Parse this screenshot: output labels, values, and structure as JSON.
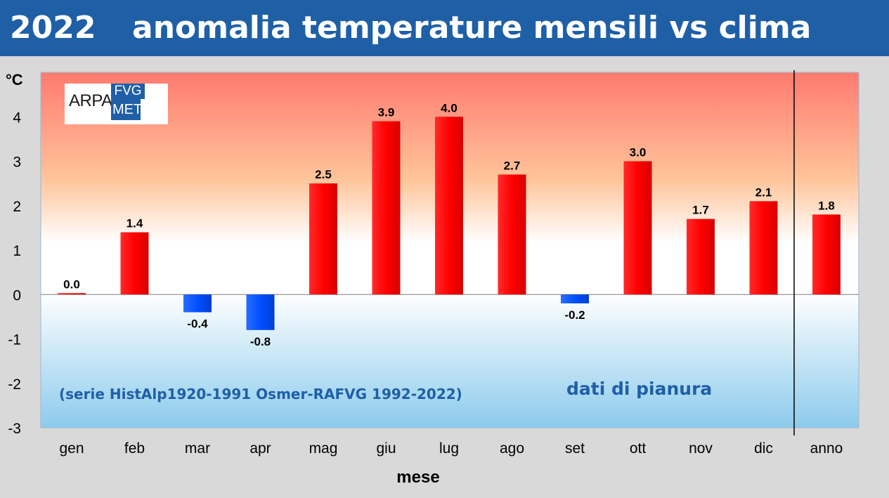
{
  "header": {
    "year": "2022",
    "title": "anomalia temperature mensili vs clima"
  },
  "logo": {
    "name": "arpa-fvg-meteo-logo",
    "text_arpa": "ARPA",
    "text_fvg": "FVG",
    "text_meteo": "METEO"
  },
  "annotations": {
    "source": "(serie HistAlp1920-1991 Osmer-RAFVG 1992-2022)",
    "note": "dati di pianura"
  },
  "chart_data": {
    "type": "bar",
    "title": "anomalia temperature mensili vs clima",
    "xlabel": "mese",
    "ylabel": "°C",
    "ylim": [
      -3,
      5
    ],
    "yticks": [
      4,
      3,
      2,
      1,
      0,
      -1,
      -2,
      -3
    ],
    "grid": false,
    "categories": [
      "gen",
      "feb",
      "mar",
      "apr",
      "mag",
      "giu",
      "lug",
      "ago",
      "set",
      "ott",
      "nov",
      "dic",
      "anno"
    ],
    "values": [
      0.03,
      1.4,
      -0.4,
      -0.8,
      2.5,
      3.9,
      4.0,
      2.7,
      -0.2,
      3.0,
      1.7,
      2.1,
      1.8
    ],
    "labels": [
      "0.0",
      "1.4",
      "-0.4",
      "-0.8",
      "2.5",
      "3.9",
      "4.0",
      "2.7",
      "-0.2",
      "3.0",
      "1.7",
      "2.1",
      "1.8"
    ],
    "colors": {
      "positive": "#ff0000",
      "negative": "#0050ff"
    }
  }
}
